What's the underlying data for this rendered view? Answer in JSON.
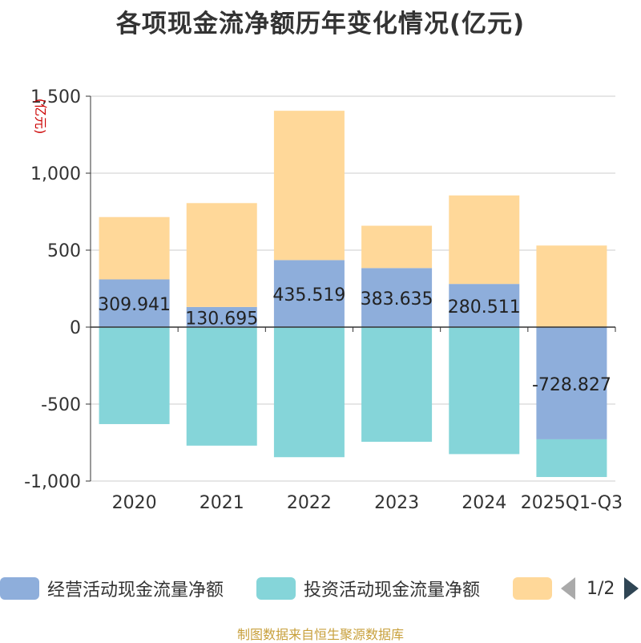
{
  "title": "各项现金流净额历年变化情况(亿元)",
  "source_note": "制图数据来自恒生聚源数据库",
  "pager": {
    "text": "1/2"
  },
  "colors": {
    "operating": "#8eaedb",
    "investing": "#85d5d9",
    "financing": "#ffd899",
    "grid": "#cccccc",
    "axis": "#333333",
    "unit": "#cc0000"
  },
  "legend": [
    {
      "name": "经营活动现金流量净额",
      "color": "#8eaedb"
    },
    {
      "name": "投资活动现金流量净额",
      "color": "#85d5d9"
    },
    {
      "name": "",
      "color": "#ffd899"
    }
  ],
  "chart_data": {
    "type": "bar",
    "stacked": true,
    "title": "各项现金流净额历年变化情况(亿元)",
    "unit_label": "(亿元)",
    "categories": [
      "2020",
      "2021",
      "2022",
      "2023",
      "2024",
      "2025Q1-Q3"
    ],
    "ylim": [
      -1000,
      1500
    ],
    "yticks": [
      -1000,
      -500,
      0,
      500,
      1000,
      1500
    ],
    "ytick_labels": [
      "-1,000",
      "-500",
      "0",
      "500",
      "1,000",
      "1,500"
    ],
    "series": [
      {
        "name": "经营活动现金流量净额",
        "color": "#8eaedb",
        "values": [
          309.941,
          130.695,
          435.519,
          383.635,
          280.511,
          -728.827
        ],
        "labels": [
          "309.941",
          "130.695",
          "435.519",
          "383.635",
          "280.511",
          "-728.827"
        ]
      },
      {
        "name": "投资活动现金流量净额",
        "color": "#85d5d9",
        "values": [
          -630,
          -770,
          -845,
          -745,
          -825,
          -245
        ]
      },
      {
        "name": "",
        "color": "#ffd899",
        "values": [
          405,
          675,
          970,
          275,
          575,
          530
        ]
      }
    ]
  }
}
